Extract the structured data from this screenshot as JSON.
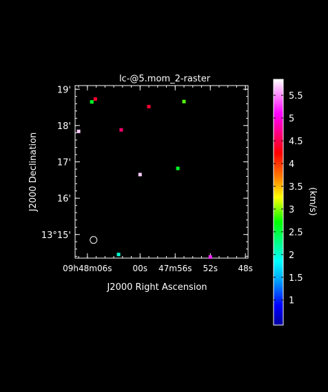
{
  "chart_data": {
    "type": "scatter",
    "title": "lc-@5.mom_2-raster",
    "xlabel": "J2000 Right Ascension",
    "ylabel": "J2000 Declination",
    "x_unit": "seconds of RA offset from 09h48m00s",
    "y_unit": "arcminutes of Dec offset from 13°00'",
    "xlim": [
      7.4,
      -12.3
    ],
    "ylim": [
      14.35,
      19.1
    ],
    "x_ticks": [
      {
        "value": 6,
        "label": "09h48m06s"
      },
      {
        "value": 0,
        "label": "00s"
      },
      {
        "value": -4,
        "label": "47m56s"
      },
      {
        "value": -8,
        "label": "52s"
      },
      {
        "value": -12,
        "label": "48s"
      }
    ],
    "y_ticks": [
      {
        "value": 19,
        "label": "19'"
      },
      {
        "value": 18,
        "label": "18'"
      },
      {
        "value": 17,
        "label": "17'"
      },
      {
        "value": 16,
        "label": "16'"
      },
      {
        "value": 15,
        "label": "13°15'"
      }
    ],
    "points": [
      {
        "x": 5.1,
        "y": 18.73,
        "v": 4.4
      },
      {
        "x": 5.5,
        "y": 18.65,
        "v": 2.6
      },
      {
        "x": 7.0,
        "y": 17.84,
        "v": 5.7
      },
      {
        "x": 2.15,
        "y": 17.88,
        "v": 4.6
      },
      {
        "x": -1.0,
        "y": 18.52,
        "v": 4.4
      },
      {
        "x": -5.0,
        "y": 18.66,
        "v": 2.9
      },
      {
        "x": 0.0,
        "y": 16.65,
        "v": 5.7
      },
      {
        "x": -4.3,
        "y": 16.82,
        "v": 2.6
      },
      {
        "x": 2.45,
        "y": 14.45,
        "v": 2.0
      },
      {
        "x": -8.0,
        "y": 14.38,
        "v": 5.2
      }
    ],
    "beam": {
      "x": 5.3,
      "y": 14.85
    },
    "colorbar": {
      "label": "(km/s)",
      "range": [
        0.45,
        5.85
      ],
      "ticks": [
        1,
        1.5,
        2,
        2.5,
        3,
        3.5,
        4,
        4.5,
        5,
        5.5
      ],
      "tick_labels": [
        "1",
        "1.5",
        "2",
        "2.5",
        "3",
        "3.5",
        "4",
        "4.5",
        "5",
        "5.5"
      ]
    }
  }
}
